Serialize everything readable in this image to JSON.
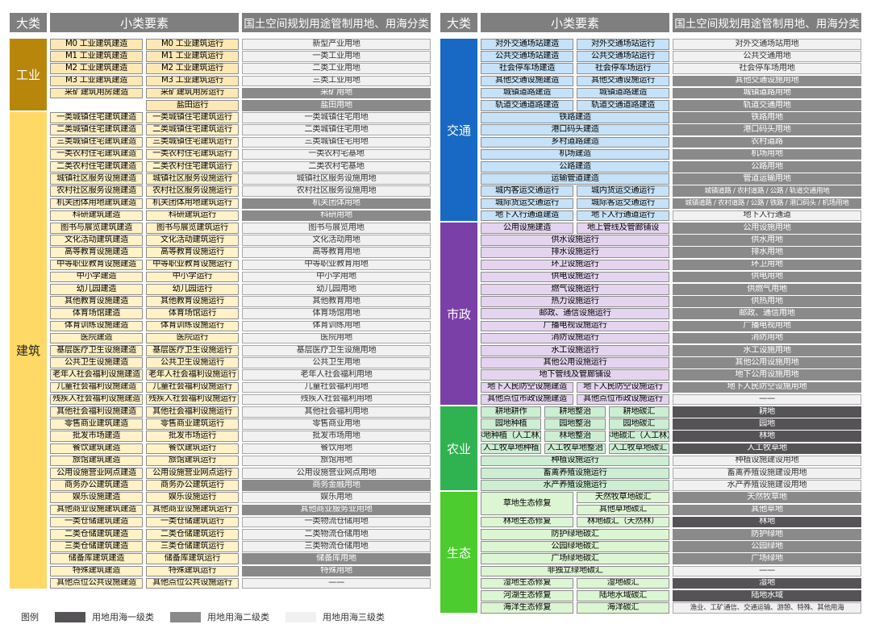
{
  "headers": {
    "category": "大类",
    "elements": "小类要素",
    "usage": "国土空间规划用途管制用地、用海分类"
  },
  "colors": {
    "industry": {
      "cat": "#b8860b",
      "cell": "#fbe8b4"
    },
    "building": {
      "cat": "#ffd966",
      "cell": "#fff2c6"
    },
    "transport": {
      "cat": "#1769c4",
      "cell": "#c5e2f8"
    },
    "municipal": {
      "cat": "#7b3fa8",
      "cell": "#e5d4f0"
    },
    "agriculture": {
      "cat": "#2fb350",
      "cell": "#cdeed3"
    },
    "ecology": {
      "cat": "#4ccc2e",
      "cell": "#dcf5d2"
    }
  },
  "left_sections": [
    {
      "key": "industry",
      "name": "工业",
      "rows": [
        {
          "a": "M0 工业建筑建造",
          "b": "M0 工业建筑运行",
          "u": "新型产业用地",
          "t": 3
        },
        {
          "a": "M1 工业建筑建造",
          "b": "M1 工业建筑运行",
          "u": "一类工业用地",
          "t": 3
        },
        {
          "a": "M2 工业建筑建造",
          "b": "M2 工业建筑运行",
          "u": "二类工业用地",
          "t": 3
        },
        {
          "a": "M3 工业建筑建造",
          "b": "M3 工业建筑运行",
          "u": "三类工业用地",
          "t": 3
        },
        {
          "a": "采矿建筑用房建造",
          "b": "采矿建筑用房运行",
          "u": "采矿用地",
          "t": 2
        },
        {
          "a": "",
          "b": "盐田运行",
          "u": "盐田用地",
          "t": 2
        }
      ]
    },
    {
      "key": "building",
      "name": "建筑",
      "rows": [
        {
          "a": "一类城镇住宅建筑建造",
          "b": "一类城镇住宅建筑运行",
          "u": "一类城镇住宅用地",
          "t": 3
        },
        {
          "a": "二类城镇住宅建筑建造",
          "b": "二类城镇住宅建筑运行",
          "u": "二类城镇住宅用地",
          "t": 3
        },
        {
          "a": "三类城镇住宅建筑建造",
          "b": "三类城镇住宅建筑运行",
          "u": "三类城镇住宅用地",
          "t": 3
        },
        {
          "a": "一类农村住宅建筑建造",
          "b": "一类农村住宅建筑运行",
          "u": "一类农村宅基地",
          "t": 3
        },
        {
          "a": "二类农村住宅建筑建造",
          "b": "二类农村住宅建筑运行",
          "u": "二类农村宅基地",
          "t": 3
        },
        {
          "a": "城镇社区服务设施建造",
          "b": "城镇社区服务设施运行",
          "u": "城镇社区服务设施用地",
          "t": 3
        },
        {
          "a": "农村社区服务设施建造",
          "b": "农村社区服务设施运行",
          "u": "农村社区服务设施用地",
          "t": 3
        },
        {
          "a": "机关团体用地建筑建造",
          "b": "机关团体用地建筑运行",
          "u": "机关团体用地",
          "t": 2
        },
        {
          "a": "科研建筑建造",
          "b": "科研建筑运行",
          "u": "科研用地",
          "t": 2
        },
        {
          "a": "图书与展览建筑建造",
          "b": "图书与展览建筑运行",
          "u": "图书与展览用地",
          "t": 3
        },
        {
          "a": "文化活动建筑建造",
          "b": "文化活动建筑运行",
          "u": "文化活动用地",
          "t": 3
        },
        {
          "a": "高等教育设施建造",
          "b": "高等教育设施运行",
          "u": "高等教育用地",
          "t": 3
        },
        {
          "a": "中等职业教育设施建造",
          "b": "中等职业教育设施运行",
          "u": "中等职业教育用地",
          "t": 3
        },
        {
          "a": "中小学建造",
          "b": "中小学运行",
          "u": "中小学用地",
          "t": 3
        },
        {
          "a": "幼儿园建造",
          "b": "幼儿园运行",
          "u": "幼儿园用地",
          "t": 3
        },
        {
          "a": "其他教育设施建造",
          "b": "其他教育设施运行",
          "u": "其他教育用地",
          "t": 3
        },
        {
          "a": "体育场馆建造",
          "b": "体育场馆运行",
          "u": "体育场馆用地",
          "t": 3
        },
        {
          "a": "体育训练设施建造",
          "b": "体育训练设施运行",
          "u": "体育训练用地",
          "t": 3
        },
        {
          "a": "医院建造",
          "b": "医院运行",
          "u": "医院用地",
          "t": 3
        },
        {
          "a": "基层医疗卫生设施建造",
          "b": "基层医疗卫生设施运行",
          "u": "基层医疗卫生设施用地",
          "t": 3
        },
        {
          "a": "公共卫生设施建造",
          "b": "公共卫生设施运行",
          "u": "公共卫生用地",
          "t": 3
        },
        {
          "a": "老年人社会福利设施建造",
          "b": "老年人社会福利设施运行",
          "u": "老年人社会福利用地",
          "t": 3
        },
        {
          "a": "儿童社会福利设施建造",
          "b": "儿童社会福利设施运行",
          "u": "儿童社会福利用地",
          "t": 3
        },
        {
          "a": "残疾人社会福利设施建造",
          "b": "残疾人社会福利设施运行",
          "u": "残疾人社会福利用地",
          "t": 3
        },
        {
          "a": "其他社会福利设施建造",
          "b": "其他社会福利设施运行",
          "u": "其他社会福利用地",
          "t": 3
        },
        {
          "a": "零售商业建筑建造",
          "b": "零售商业建筑运行",
          "u": "零售商业用地",
          "t": 3
        },
        {
          "a": "批发市场建造",
          "b": "批发市场运行",
          "u": "批发市场用地",
          "t": 3
        },
        {
          "a": "餐饮建筑建造",
          "b": "餐饮建筑运行",
          "u": "餐饮用地",
          "t": 3
        },
        {
          "a": "旅馆建筑建造",
          "b": "旅馆建筑运行",
          "u": "旅馆用地",
          "t": 3
        },
        {
          "a": "公用设施营业网点建造",
          "b": "公用设施营业网点运行",
          "u": "公用设施营业网点用地",
          "t": 3
        },
        {
          "a": "商务办公建筑建造",
          "b": "商务办公建筑运行",
          "u": "商务金融用地",
          "t": 2
        },
        {
          "a": "娱乐设施建造",
          "b": "娱乐设施运行",
          "u": "娱乐用地",
          "t": 3
        },
        {
          "a": "其他商业设施建筑建造",
          "b": "其他商业设施建筑运行",
          "u": "其他商业服务业用地",
          "t": 2
        },
        {
          "a": "一类仓储建筑建造",
          "b": "一类仓储建筑运行",
          "u": "一类物流仓储用地",
          "t": 3
        },
        {
          "a": "二类仓储建筑建造",
          "b": "二类仓储建筑运行",
          "u": "二类物流仓储用地",
          "t": 3
        },
        {
          "a": "三类仓储建筑建造",
          "b": "三类仓储建筑运行",
          "u": "三类物流仓储用地",
          "t": 3
        },
        {
          "a": "储备库建筑建造",
          "b": "储备库建筑运行",
          "u": "储备库用地",
          "t": 2
        },
        {
          "a": "特殊建筑建造",
          "b": "特殊建筑运行",
          "u": "特殊用地",
          "t": 2
        },
        {
          "a": "其他点位公共设施建造",
          "b": "其他点位公共设施运行",
          "u": "——",
          "t": 3
        }
      ]
    }
  ],
  "right_sections": [
    {
      "key": "transport",
      "name": "交通",
      "rows": [
        {
          "a": "对外交通场站建造",
          "b": "对外交通场站运行",
          "u": "对外交通场站用地",
          "t": 3
        },
        {
          "a": "公共交通场站建造",
          "b": "公共交通场站运行",
          "u": "公共交通用地",
          "t": 3
        },
        {
          "a": "社会停车场建造",
          "b": "社会停车场运行",
          "u": "社会停车场用地",
          "t": 3
        },
        {
          "a": "其他交通设施建造",
          "b": "其他交通设施运行",
          "u": "其他交通设施用地",
          "t": 2
        },
        {
          "a": "城镇道路建造",
          "b": "城镇道路建造",
          "u": "城镇道路用地",
          "t": 2
        },
        {
          "a": "轨道交通道路建造",
          "b": "轨道交通道路建造",
          "u": "轨道交通用地",
          "t": 2
        },
        {
          "s": "铁路建造",
          "u": "铁路用地",
          "t": 2
        },
        {
          "s": "港口码头建造",
          "u": "港口码头用地",
          "t": 2
        },
        {
          "s": "乡村道路建造",
          "u": "农村道路",
          "t": 2
        },
        {
          "s": "机场建造",
          "u": "机场用地",
          "t": 2
        },
        {
          "s": "公路建造",
          "u": "公路用地",
          "t": 2
        },
        {
          "s": "运输管道建造",
          "u": "管道运输用地",
          "t": 2
        },
        {
          "a": "城内客运交通运行",
          "b": "城内货运交通运行",
          "u": "城镇道路 / 农村道路 / 公路 / 轨道交通用地",
          "t": 2
        },
        {
          "a": "城际货运交通运行",
          "b": "城际客运交通运行",
          "u": "城镇道路 / 农村道路 / 公路 / 铁路 / 港口码头 / 机场用地",
          "t": 2
        },
        {
          "a": "地下人行通道建造",
          "b": "地下人行通道运行",
          "u": "地下人行通道",
          "t": 3
        }
      ]
    },
    {
      "key": "municipal",
      "name": "市政",
      "rows": [
        {
          "a": "公用设施建造",
          "b": "地上管线及管廊铺设",
          "u": "公用设施用地",
          "t": 2
        },
        {
          "s": "供水设施运行",
          "u": "供水用地",
          "t": 2
        },
        {
          "s": "排水设施运行",
          "u": "排水用地",
          "t": 2
        },
        {
          "s": "环卫设施运行",
          "u": "环卫用地",
          "t": 2
        },
        {
          "s": "供电设施运行",
          "u": "供电用地",
          "t": 2
        },
        {
          "s": "燃气设施运行",
          "u": "供燃气用地",
          "t": 2
        },
        {
          "s": "热力设施运行",
          "u": "供热用地",
          "t": 2
        },
        {
          "s": "邮政、通信设施运行",
          "u": "邮政、通信用地",
          "t": 2
        },
        {
          "s": "广播电视设施运行",
          "u": "广播电视用地",
          "t": 2
        },
        {
          "s": "消防设施运行",
          "u": "消防用地",
          "t": 2
        },
        {
          "s": "水工设施运行",
          "u": "水工设施用地",
          "t": 2
        },
        {
          "s": "其他公用设施运行",
          "u": "其他公用设施用地",
          "t": 2
        },
        {
          "s": "地下管线及管廊铺设",
          "u": "地下公用设施用地",
          "t": 2
        },
        {
          "a": "地下人民防空设施建造",
          "b": "地下人民防空设施运行",
          "u": "地下人民防空设施用地",
          "t": 2
        },
        {
          "a": "其他点位市政设施建造",
          "b": "其他点位市政设施运行",
          "u": "——",
          "t": 3
        }
      ]
    },
    {
      "key": "agriculture",
      "name": "农业",
      "rows": [
        {
          "x": [
            "耕地耕作",
            "耕地整治",
            "耕地碳汇"
          ],
          "u": "耕地",
          "t": 1
        },
        {
          "x": [
            "园地种植",
            "园地整治",
            "园地碳汇"
          ],
          "u": "园地",
          "t": 1
        },
        {
          "x": [
            "林地种植（人工林）",
            "林地整治",
            "林地碳汇（人工林）"
          ],
          "u": "林地",
          "t": 1
        },
        {
          "x": [
            "人工牧草地种植",
            "人工牧草地整治",
            "人工牧草地碳汇"
          ],
          "u": "人工牧草地",
          "t": 1
        },
        {
          "s": "种植设施运行",
          "u": "种植设施建设用地",
          "t": 3
        },
        {
          "s": "畜禽养殖设施运行",
          "u": "畜禽养殖设施建设用地",
          "t": 3
        },
        {
          "s": "水产养殖设施运行",
          "u": "水产养殖设施建设用地",
          "t": 3
        }
      ]
    },
    {
      "key": "ecology",
      "name": "生态",
      "rows": [
        {
          "merge": "草地生态修复",
          "b": "天然牧草地碳汇",
          "u": "天然牧草地",
          "t": 2
        },
        {
          "b": "其他草地碳汇",
          "u": "其他草地",
          "t": 2
        },
        {
          "a": "林地生态修复",
          "b": "林地碳汇（天然林）",
          "u": "林地",
          "t": 1
        },
        {
          "s": "防护绿地碳汇",
          "u": "防护绿地",
          "t": 2
        },
        {
          "s": "公园绿地碳汇",
          "u": "公园绿地",
          "t": 2
        },
        {
          "s": "广场绿地碳汇",
          "u": "广场绿地",
          "t": 2
        },
        {
          "s": "非独立绿地碳汇",
          "u": "——",
          "t": 3
        },
        {
          "a": "湿地生态修复",
          "b": "湿地碳汇",
          "u": "湿地",
          "t": 1
        },
        {
          "a": "河湖生态修复",
          "b": "陆地水域碳汇",
          "u": "陆地水域",
          "t": 1
        },
        {
          "a": "海洋生态修复",
          "b": "海洋碳汇",
          "u": "渔业、工矿通信、交通运输、游憩、特殊、其他用海",
          "t": 3
        }
      ]
    }
  ],
  "legend": {
    "title": "图例",
    "items": [
      {
        "label": "用地用海一级类",
        "tier": 1
      },
      {
        "label": "用地用海二级类",
        "tier": 2
      },
      {
        "label": "用地用海三级类",
        "tier": 3
      }
    ]
  }
}
